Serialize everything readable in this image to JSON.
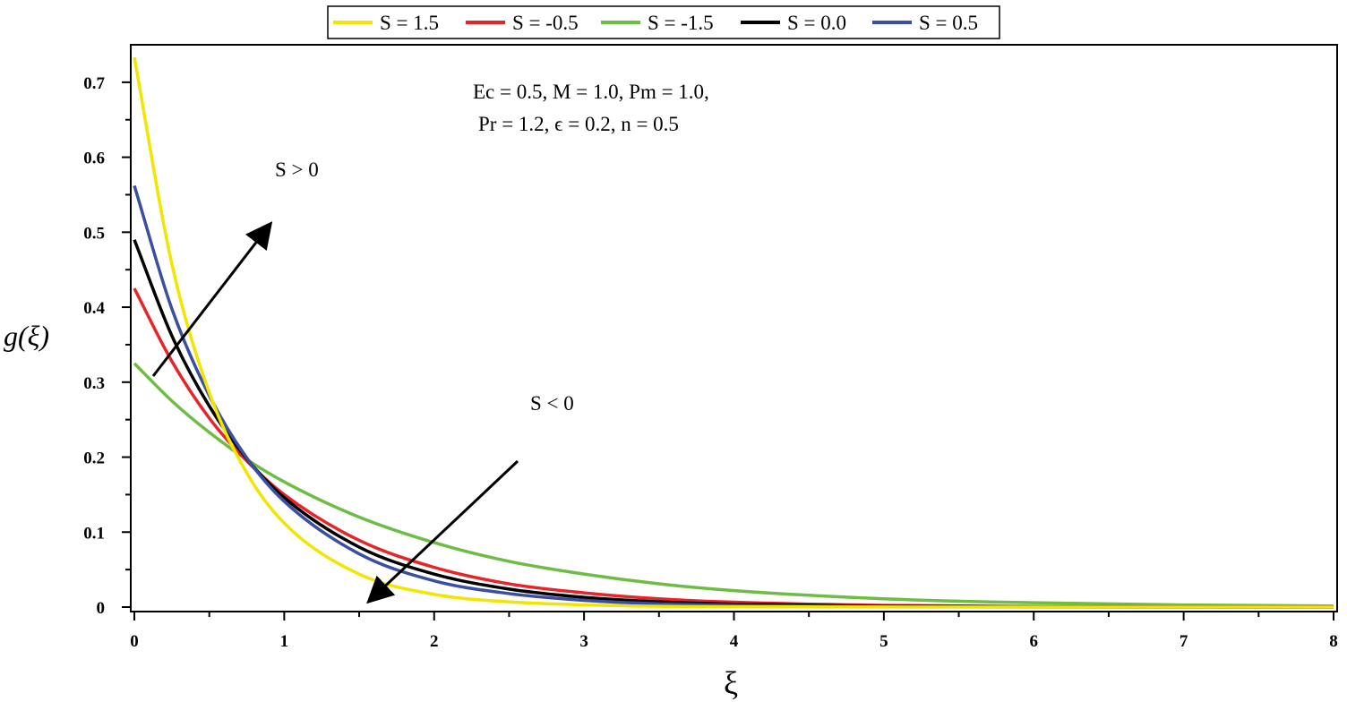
{
  "chart_data": {
    "type": "line",
    "title": "",
    "xlabel": "ξ",
    "ylabel": "g(ξ)",
    "xlim": [
      0,
      8
    ],
    "ylim": [
      0,
      0.75
    ],
    "grid": false,
    "legend_position": "top",
    "x_ticks": [
      "0",
      "1",
      "2",
      "3",
      "4",
      "5",
      "6",
      "7",
      "8"
    ],
    "y_ticks": [
      "0",
      "0.1",
      "0.2",
      "0.3",
      "0.4",
      "0.5",
      "0.6",
      "0.7"
    ],
    "x_tick_values": [
      0,
      1,
      2,
      3,
      4,
      5,
      6,
      7,
      8
    ],
    "y_tick_values": [
      0,
      0.1,
      0.2,
      0.3,
      0.4,
      0.5,
      0.6,
      0.7
    ],
    "x": [
      0,
      0.25,
      0.5,
      0.75,
      1.0,
      1.5,
      2.0,
      2.5,
      3.0,
      3.5,
      4.0,
      5.0,
      6.0,
      7.0,
      8.0
    ],
    "series": [
      {
        "name": "S = 1.5",
        "color": "#f2e500",
        "values": [
          0.733,
          0.458,
          0.286,
          0.179,
          0.112,
          0.044,
          0.017,
          0.007,
          0.003,
          0.001,
          0.0004,
          0.0001,
          0.0,
          0.0,
          0.0
        ]
      },
      {
        "name": "S = -0.5",
        "color": "#e8242b",
        "values": [
          0.425,
          0.328,
          0.252,
          0.195,
          0.15,
          0.089,
          0.053,
          0.031,
          0.019,
          0.011,
          0.0065,
          0.0023,
          0.0008,
          0.0003,
          0.0001
        ]
      },
      {
        "name": "S = -1.5",
        "color": "#6dbd45",
        "values": [
          0.325,
          0.275,
          0.233,
          0.197,
          0.167,
          0.12,
          0.086,
          0.061,
          0.044,
          0.031,
          0.022,
          0.011,
          0.0058,
          0.0029,
          0.0015
        ]
      },
      {
        "name": "S = 0.0",
        "color": "#000000",
        "values": [
          0.49,
          0.362,
          0.268,
          0.198,
          0.146,
          0.08,
          0.044,
          0.024,
          0.013,
          0.007,
          0.0039,
          0.0012,
          0.0004,
          0.0001,
          0.0
        ]
      },
      {
        "name": "S = 0.5",
        "color": "#3a4fa3",
        "values": [
          0.562,
          0.398,
          0.282,
          0.199,
          0.141,
          0.071,
          0.035,
          0.018,
          0.009,
          0.0044,
          0.0022,
          0.0005,
          0.0001,
          0.0,
          0.0
        ]
      }
    ],
    "annotations": {
      "params_line1": "Ec = 0.5, M = 1.0, Pm = 1.0,",
      "params_line2": "Pr = 1.2, ϵ = 0.2, n = 0.5",
      "arrow_up_label": "S > 0",
      "arrow_down_label": "S < 0"
    }
  }
}
